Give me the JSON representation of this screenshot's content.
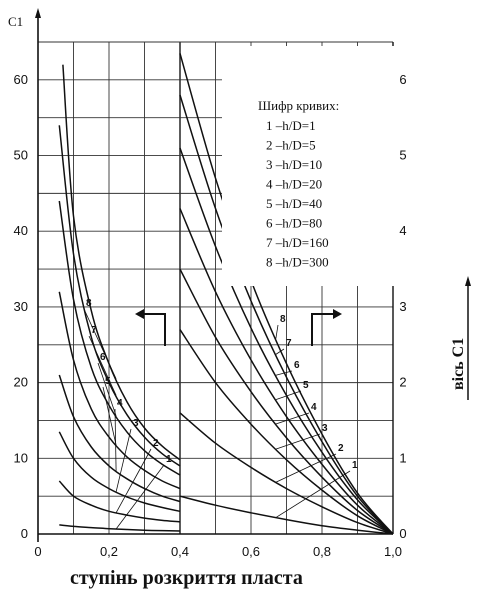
{
  "chart_data": {
    "type": "line",
    "title": "",
    "xlabel": "ступінь розкриття пласта",
    "ylabel_left": "C1",
    "ylabel_right": "вісь C1",
    "xlim": [
      0,
      1.0
    ],
    "ylim_left": [
      0,
      65
    ],
    "ylim_right": [
      0,
      6.5
    ],
    "x_ticks": [
      "0",
      "0,2",
      "0,4",
      "0,6",
      "0,8",
      "1,0"
    ],
    "x_tick_values": [
      0,
      0.2,
      0.4,
      0.6,
      0.8,
      1.0
    ],
    "y_left_ticks": [
      "0",
      "10",
      "20",
      "30",
      "40",
      "50",
      "60"
    ],
    "y_left_tick_values": [
      0,
      10,
      20,
      30,
      40,
      50,
      60
    ],
    "y_right_ticks": [
      "0",
      "1",
      "2",
      "3",
      "4",
      "5",
      "6"
    ],
    "y_right_tick_values": [
      0,
      1,
      2,
      3,
      4,
      5,
      6
    ],
    "grid": true,
    "legend": {
      "title": "Шифр кривих:",
      "entries": [
        "1 –h/D=1",
        "2 –h/D=5",
        "3 –h/D=10",
        "4 –h/D=20",
        "5 –h/D=40",
        "6 –h/D=80",
        "7 –h/D=160",
        "8 –h/D=300"
      ],
      "placement": "top-right"
    },
    "left_panel": {
      "axis": "left",
      "series": [
        {
          "name": "1",
          "x": [
            0.06,
            0.1,
            0.15,
            0.2,
            0.25,
            0.3,
            0.35,
            0.4
          ],
          "y": [
            1.2,
            1.0,
            0.85,
            0.7,
            0.6,
            0.5,
            0.45,
            0.4
          ]
        },
        {
          "name": "2",
          "x": [
            0.06,
            0.1,
            0.15,
            0.2,
            0.25,
            0.3,
            0.35,
            0.4
          ],
          "y": [
            7.0,
            5.0,
            3.8,
            3.0,
            2.5,
            2.1,
            1.8,
            1.6
          ]
        },
        {
          "name": "3",
          "x": [
            0.06,
            0.1,
            0.15,
            0.2,
            0.25,
            0.3,
            0.35,
            0.4
          ],
          "y": [
            13.5,
            10.0,
            7.5,
            6.0,
            4.9,
            4.1,
            3.5,
            3.0
          ]
        },
        {
          "name": "4",
          "x": [
            0.06,
            0.1,
            0.15,
            0.2,
            0.25,
            0.3,
            0.35,
            0.4
          ],
          "y": [
            21.0,
            15.5,
            11.5,
            9.0,
            7.3,
            6.0,
            5.0,
            4.3
          ]
        },
        {
          "name": "5",
          "x": [
            0.06,
            0.1,
            0.15,
            0.2,
            0.25,
            0.3,
            0.35,
            0.4
          ],
          "y": [
            32.0,
            23.0,
            16.5,
            12.8,
            10.2,
            8.4,
            7.0,
            6.0
          ]
        },
        {
          "name": "6",
          "x": [
            0.06,
            0.1,
            0.15,
            0.2,
            0.25,
            0.3,
            0.35,
            0.4
          ],
          "y": [
            44.0,
            31.0,
            22.0,
            17.0,
            13.5,
            11.0,
            9.2,
            7.8
          ]
        },
        {
          "name": "7",
          "x": [
            0.06,
            0.1,
            0.15,
            0.2,
            0.25,
            0.3,
            0.35,
            0.4
          ],
          "y": [
            54.0,
            37.0,
            26.0,
            20.0,
            15.8,
            12.8,
            10.6,
            9.0
          ]
        },
        {
          "name": "8",
          "x": [
            0.07,
            0.1,
            0.15,
            0.2,
            0.25,
            0.3,
            0.35,
            0.4
          ],
          "y": [
            62.0,
            42.0,
            29.5,
            22.5,
            17.5,
            14.0,
            11.6,
            9.8
          ]
        }
      ]
    },
    "right_panel": {
      "axis": "right",
      "series": [
        {
          "name": "1",
          "x": [
            0.4,
            0.5,
            0.6,
            0.7,
            0.8,
            0.9,
            1.0
          ],
          "y": [
            0.5,
            0.38,
            0.28,
            0.19,
            0.11,
            0.05,
            0.0
          ]
        },
        {
          "name": "2",
          "x": [
            0.4,
            0.5,
            0.6,
            0.7,
            0.8,
            0.9,
            1.0
          ],
          "y": [
            1.6,
            1.2,
            0.88,
            0.6,
            0.36,
            0.15,
            0.0
          ]
        },
        {
          "name": "3",
          "x": [
            0.4,
            0.5,
            0.6,
            0.7,
            0.8,
            0.9,
            1.0
          ],
          "y": [
            2.7,
            2.0,
            1.45,
            0.98,
            0.58,
            0.24,
            0.0
          ]
        },
        {
          "name": "4",
          "x": [
            0.4,
            0.5,
            0.6,
            0.7,
            0.8,
            0.9,
            1.0
          ],
          "y": [
            3.5,
            2.6,
            1.88,
            1.27,
            0.75,
            0.31,
            0.0
          ]
        },
        {
          "name": "5",
          "x": [
            0.4,
            0.5,
            0.6,
            0.7,
            0.8,
            0.9,
            1.0
          ],
          "y": [
            4.3,
            3.2,
            2.3,
            1.55,
            0.92,
            0.38,
            0.0
          ]
        },
        {
          "name": "6",
          "x": [
            0.4,
            0.5,
            0.6,
            0.7,
            0.8,
            0.9,
            1.0
          ],
          "y": [
            5.1,
            3.8,
            2.72,
            1.83,
            1.08,
            0.45,
            0.0
          ]
        },
        {
          "name": "7",
          "x": [
            0.4,
            0.5,
            0.6,
            0.7,
            0.8,
            0.9,
            1.0
          ],
          "y": [
            5.8,
            4.3,
            3.08,
            2.07,
            1.22,
            0.5,
            0.0
          ]
        },
        {
          "name": "8",
          "x": [
            0.4,
            0.5,
            0.6,
            0.7,
            0.8,
            0.9,
            1.0
          ],
          "y": [
            6.35,
            4.7,
            3.35,
            2.25,
            1.32,
            0.54,
            0.0
          ]
        }
      ]
    },
    "curve_labels": [
      "1",
      "2",
      "3",
      "4",
      "5",
      "6",
      "7",
      "8"
    ]
  }
}
